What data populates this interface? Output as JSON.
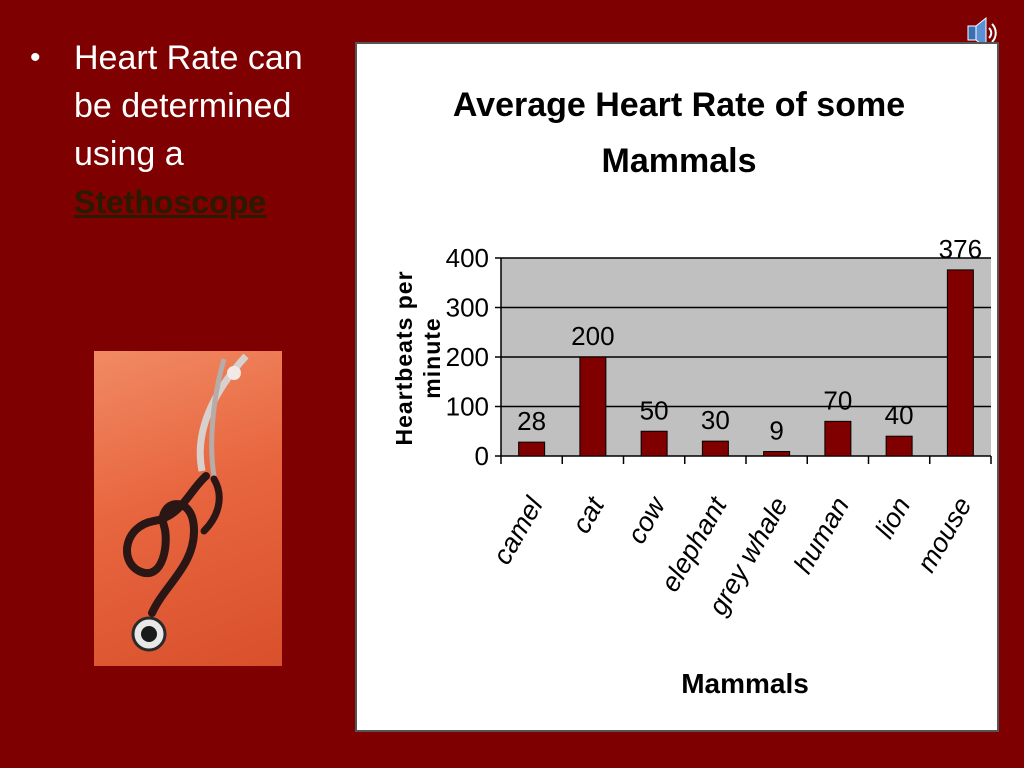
{
  "slide": {
    "bullet": "•",
    "text": "Heart Rate can be determined using a",
    "link": "Stethoscope"
  },
  "icons": {
    "speaker": "speaker-icon",
    "stethoscope": "stethoscope-photo"
  },
  "colors": {
    "background": "#7f0000",
    "bar": "#800000",
    "plot_area": "#c0c0c0"
  },
  "chart_data": {
    "type": "bar",
    "title": "Average Heart Rate of some Mammals",
    "xlabel": "Mammals",
    "ylabel": "Heartbeats per minute",
    "categories": [
      "camel",
      "cat",
      "cow",
      "elephant",
      "grey whale",
      "human",
      "lion",
      "mouse"
    ],
    "values": [
      28,
      200,
      50,
      30,
      9,
      70,
      40,
      376
    ],
    "ylim": [
      0,
      400
    ],
    "yticks": [
      0,
      100,
      200,
      300,
      400
    ],
    "grid": true,
    "legend": "none"
  }
}
